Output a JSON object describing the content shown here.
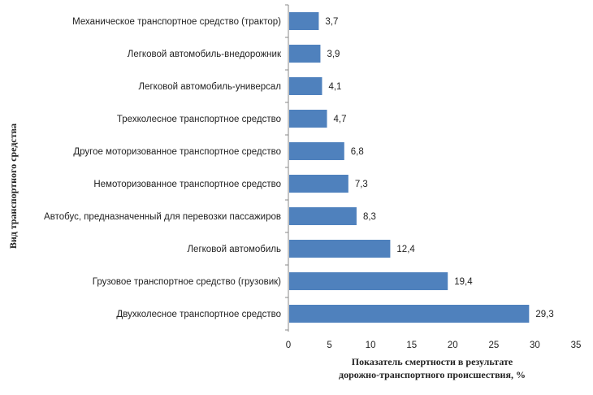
{
  "chart_data": {
    "type": "bar",
    "orientation": "horizontal",
    "categories": [
      "Механическое транспортное средство (трактор)",
      "Легковой автомобиль-внедорожник",
      "Легковой автомобиль-универсал",
      "Трехколесное транспортное средство",
      "Другое моторизованное транспортное средство",
      "Немоторизованное транспортное средство",
      "Автобус, предназначенный для перевозки пассажиров",
      "Легковой автомобиль",
      "Грузовое транспортное средство (грузовик)",
      "Двухколесное транспортное средство"
    ],
    "values": [
      3.7,
      3.9,
      4.1,
      4.7,
      6.8,
      7.3,
      8.3,
      12.4,
      19.4,
      29.3
    ],
    "value_labels": [
      "3,7",
      "3,9",
      "4,1",
      "4,7",
      "6,8",
      "7,3",
      "8,3",
      "12,4",
      "19,4",
      "29,3"
    ],
    "xlabel_line1": "Показатель смертности в результате",
    "xlabel_line2": "дорожно-транспортного происшествия, %",
    "ylabel": "Вид транспортного средства",
    "xlim": [
      0,
      35
    ],
    "xticks": [
      0,
      5,
      10,
      15,
      20,
      25,
      30,
      35
    ],
    "bar_color": "#4f81bd",
    "grid": false
  }
}
